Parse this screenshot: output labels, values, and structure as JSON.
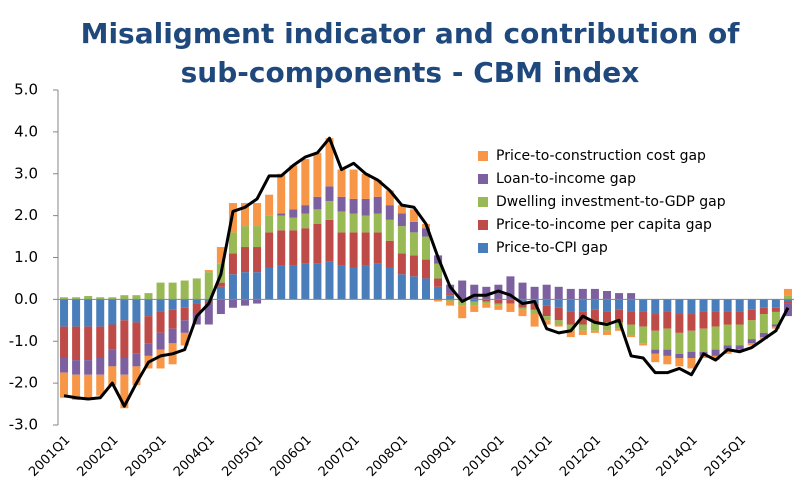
{
  "chart_data": {
    "type": "stacked-bar-line",
    "title": [
      "Misaligment indicator and contribution of",
      "sub-components - CBM index"
    ],
    "categories": [
      "2001Q1",
      null,
      null,
      null,
      "2002Q1",
      null,
      null,
      null,
      "2003Q1",
      null,
      null,
      null,
      "2004Q1",
      null,
      null,
      null,
      "2005Q1",
      null,
      null,
      null,
      "2006Q1",
      null,
      null,
      null,
      "2007Q1",
      null,
      null,
      null,
      "2008Q1",
      null,
      null,
      null,
      "2009Q1",
      null,
      null,
      null,
      "2010Q1",
      null,
      null,
      null,
      "2011Q1",
      null,
      null,
      null,
      "2012Q1",
      null,
      null,
      null,
      "2013Q1",
      null,
      null,
      null,
      "2014Q1",
      null,
      null,
      null,
      "2015Q1",
      null,
      null,
      null,
      null
    ],
    "series": [
      {
        "name": "Price-to-CPI gap",
        "color": "#4a7ebb",
        "values": [
          -0.65,
          -0.65,
          -0.65,
          -0.65,
          -0.6,
          -0.5,
          -0.55,
          -0.4,
          -0.3,
          -0.25,
          -0.2,
          -0.1,
          -0.05,
          0.3,
          0.6,
          0.65,
          0.65,
          0.75,
          0.8,
          0.8,
          0.85,
          0.85,
          0.9,
          0.8,
          0.75,
          0.8,
          0.85,
          0.75,
          0.6,
          0.55,
          0.5,
          0.3,
          0.1,
          0.0,
          -0.05,
          0.0,
          0.0,
          0.0,
          -0.1,
          -0.1,
          -0.15,
          -0.2,
          -0.3,
          -0.3,
          -0.25,
          -0.3,
          -0.25,
          -0.3,
          -0.3,
          -0.35,
          -0.3,
          -0.35,
          -0.35,
          -0.3,
          -0.3,
          -0.3,
          -0.3,
          -0.25,
          -0.2,
          -0.2,
          -0.05
        ]
      },
      {
        "name": "Price-to-income per capita gap",
        "color": "#be4b48",
        "values": [
          -0.75,
          -0.8,
          -0.8,
          -0.75,
          -0.6,
          -0.9,
          -0.75,
          -0.65,
          -0.5,
          -0.45,
          -0.3,
          -0.25,
          -0.05,
          0.1,
          0.5,
          0.6,
          0.6,
          0.85,
          0.85,
          0.85,
          0.85,
          0.95,
          1.0,
          0.8,
          0.85,
          0.8,
          0.75,
          0.65,
          0.5,
          0.5,
          0.45,
          0.2,
          0.05,
          0.0,
          0.0,
          -0.05,
          -0.1,
          -0.1,
          -0.1,
          -0.15,
          -0.25,
          -0.3,
          -0.3,
          -0.3,
          -0.3,
          -0.25,
          -0.3,
          -0.3,
          -0.35,
          -0.4,
          -0.4,
          -0.45,
          -0.4,
          -0.4,
          -0.35,
          -0.3,
          -0.3,
          -0.25,
          -0.15,
          -0.1,
          -0.05
        ]
      },
      {
        "name": "Dwelling investment-to-GDP gap",
        "color": "#98b954",
        "values": [
          0.05,
          0.05,
          0.08,
          0.05,
          0.05,
          0.1,
          0.1,
          0.15,
          0.4,
          0.4,
          0.45,
          0.5,
          0.65,
          0.45,
          0.5,
          0.5,
          0.5,
          0.4,
          0.35,
          0.3,
          0.35,
          0.35,
          0.45,
          0.5,
          0.45,
          0.4,
          0.45,
          0.5,
          0.65,
          0.55,
          0.55,
          0.35,
          -0.05,
          -0.15,
          -0.1,
          -0.05,
          -0.05,
          0.0,
          -0.05,
          -0.1,
          -0.1,
          -0.1,
          -0.15,
          -0.15,
          -0.2,
          -0.2,
          -0.15,
          -0.25,
          -0.4,
          -0.45,
          -0.5,
          -0.5,
          -0.5,
          -0.55,
          -0.55,
          -0.5,
          -0.5,
          -0.45,
          -0.45,
          -0.3,
          0.1
        ]
      },
      {
        "name": "Loan-to-income gap",
        "color": "#7d60a0",
        "values": [
          -0.35,
          -0.35,
          -0.35,
          -0.4,
          -0.4,
          -0.4,
          -0.3,
          -0.3,
          -0.4,
          -0.35,
          -0.3,
          -0.25,
          -0.5,
          -0.35,
          -0.2,
          -0.15,
          -0.1,
          0.0,
          0.05,
          0.2,
          0.2,
          0.3,
          0.35,
          0.35,
          0.35,
          0.4,
          0.4,
          0.35,
          0.3,
          0.25,
          0.2,
          0.2,
          0.2,
          0.45,
          0.35,
          0.3,
          0.35,
          0.55,
          0.4,
          0.3,
          0.35,
          0.3,
          0.25,
          0.25,
          0.25,
          0.2,
          0.15,
          0.15,
          0.0,
          -0.1,
          -0.15,
          -0.1,
          -0.15,
          -0.1,
          -0.15,
          -0.1,
          -0.1,
          -0.1,
          -0.1,
          -0.05,
          -0.3
        ]
      },
      {
        "name": "Price-to-construction cost gap",
        "color": "#f79646",
        "values": [
          -0.6,
          -0.6,
          -0.55,
          -0.5,
          -0.45,
          -0.8,
          -0.45,
          -0.3,
          -0.45,
          -0.5,
          -0.3,
          0.0,
          0.05,
          0.4,
          0.7,
          0.55,
          0.55,
          0.5,
          0.95,
          1.05,
          1.1,
          1.05,
          1.15,
          0.65,
          0.7,
          0.6,
          0.4,
          0.35,
          0.2,
          0.3,
          0.1,
          -0.05,
          -0.1,
          -0.3,
          -0.15,
          -0.1,
          -0.1,
          -0.2,
          -0.15,
          -0.3,
          -0.1,
          -0.05,
          -0.15,
          -0.1,
          -0.05,
          -0.1,
          -0.05,
          -0.05,
          -0.05,
          -0.2,
          -0.2,
          -0.2,
          -0.25,
          -0.05,
          -0.1,
          -0.1,
          -0.05,
          -0.05,
          -0.05,
          -0.05,
          0.15
        ]
      }
    ],
    "line": {
      "color": "#000000",
      "values": [
        -2.3,
        -2.35,
        -2.38,
        -2.35,
        -2.0,
        -2.55,
        -2.0,
        -1.5,
        -1.35,
        -1.3,
        -1.2,
        -0.4,
        -0.1,
        0.6,
        2.1,
        2.2,
        2.4,
        2.95,
        2.95,
        3.2,
        3.4,
        3.5,
        3.85,
        3.1,
        3.25,
        3.0,
        2.85,
        2.6,
        2.25,
        2.2,
        1.8,
        1.0,
        0.3,
        -0.05,
        0.1,
        0.1,
        0.2,
        0.1,
        -0.1,
        -0.05,
        -0.7,
        -0.8,
        -0.75,
        -0.4,
        -0.55,
        -0.6,
        -0.5,
        -1.35,
        -1.4,
        -1.75,
        -1.75,
        -1.65,
        -1.8,
        -1.3,
        -1.45,
        -1.2,
        -1.25,
        -1.15,
        -0.95,
        -0.75,
        -0.2
      ]
    },
    "ylim": [
      -3,
      5
    ],
    "yticks": [
      {
        "value": -3,
        "label": "-3.0"
      },
      {
        "value": -2,
        "label": "-2.0"
      },
      {
        "value": -1,
        "label": "-1.0"
      },
      {
        "value": 0,
        "label": "0.0"
      },
      {
        "value": 1,
        "label": "1.0"
      },
      {
        "value": 2,
        "label": "2.0"
      },
      {
        "value": 3,
        "label": "3.0"
      },
      {
        "value": 4,
        "label": "4.0"
      },
      {
        "value": 5,
        "label": "5.0"
      }
    ],
    "legend": "upper-right"
  }
}
